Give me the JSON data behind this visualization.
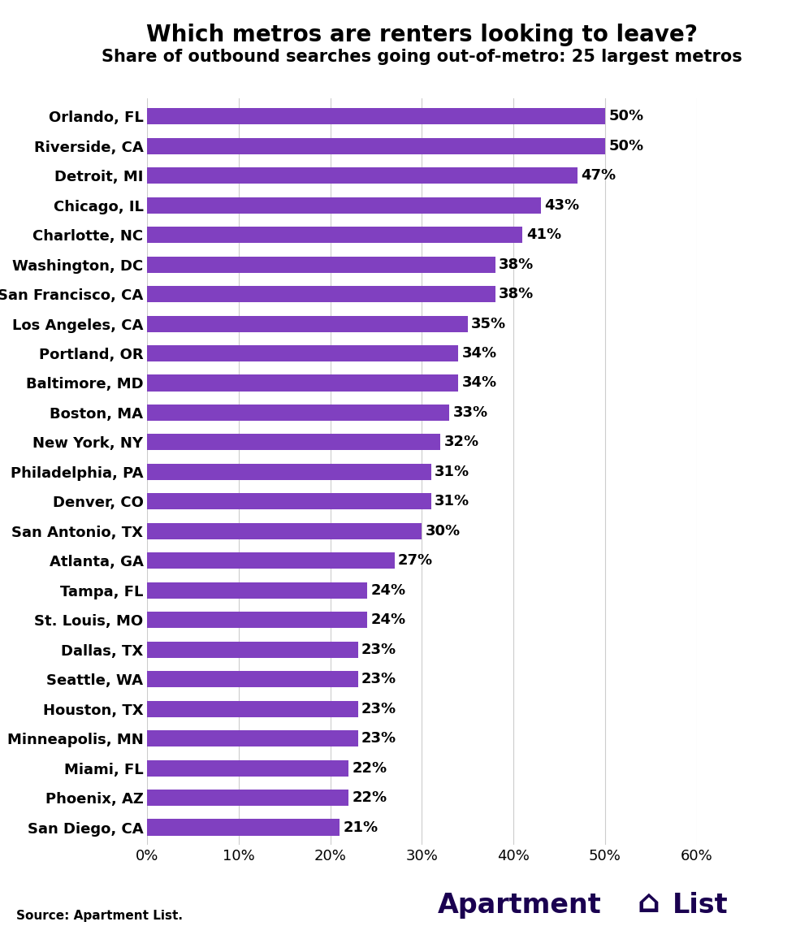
{
  "title": "Which metros are renters looking to leave?",
  "subtitle": "Share of outbound searches going out-of-metro: 25 largest metros",
  "source": "Source: Apartment List.",
  "categories": [
    "Orlando, FL",
    "Riverside, CA",
    "Detroit, MI",
    "Chicago, IL",
    "Charlotte, NC",
    "Washington, DC",
    "San Francisco, CA",
    "Los Angeles, CA",
    "Portland, OR",
    "Baltimore, MD",
    "Boston, MA",
    "New York, NY",
    "Philadelphia, PA",
    "Denver, CO",
    "San Antonio, TX",
    "Atlanta, GA",
    "Tampa, FL",
    "St. Louis, MO",
    "Dallas, TX",
    "Seattle, WA",
    "Houston, TX",
    "Minneapolis, MN",
    "Miami, FL",
    "Phoenix, AZ",
    "San Diego, CA"
  ],
  "values": [
    50,
    50,
    47,
    43,
    41,
    38,
    38,
    35,
    34,
    34,
    33,
    32,
    31,
    31,
    30,
    27,
    24,
    24,
    23,
    23,
    23,
    23,
    22,
    22,
    21
  ],
  "bar_color": "#8040C0",
  "background_color": "#ffffff",
  "grid_color": "#cccccc",
  "text_color": "#000000",
  "title_fontsize": 20,
  "subtitle_fontsize": 15,
  "label_fontsize": 13,
  "tick_fontsize": 13,
  "value_fontsize": 13,
  "xlim": [
    0,
    60
  ],
  "xticks": [
    0,
    10,
    20,
    30,
    40,
    50,
    60
  ],
  "logo_color": "#1a0050",
  "source_fontsize": 11,
  "logo_fontsize": 24
}
